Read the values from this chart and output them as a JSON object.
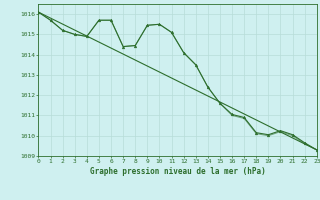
{
  "title": "Graphe pression niveau de la mer (hPa)",
  "bg_color": "#cff0f0",
  "grid_color": "#b8ddd8",
  "line_color": "#2d6e2d",
  "x_min": 0,
  "x_max": 23,
  "y_min": 1009,
  "y_max": 1016.5,
  "yticks": [
    1009,
    1010,
    1011,
    1012,
    1013,
    1014,
    1015,
    1016
  ],
  "series1_x": [
    0,
    1,
    2,
    3,
    4,
    5,
    6,
    7,
    8,
    9,
    10,
    11,
    12,
    13,
    14,
    15,
    16,
    17,
    18,
    19,
    20,
    21,
    22,
    23
  ],
  "series1_y": [
    1016.1,
    1015.7,
    1015.2,
    1015.0,
    1014.9,
    1015.7,
    1015.7,
    1014.4,
    1014.45,
    1015.45,
    1015.5,
    1015.1,
    1014.1,
    1013.5,
    1012.4,
    1011.6,
    1011.05,
    1010.9,
    1010.15,
    1010.05,
    1010.25,
    1010.05,
    1009.65,
    1009.3
  ],
  "series2_x": [
    0,
    1,
    2,
    3,
    4,
    5,
    6,
    7,
    8,
    9,
    10,
    11,
    12,
    13,
    14,
    15,
    16,
    17,
    18,
    19,
    20,
    21,
    22,
    23
  ],
  "series2_y": [
    1016.1,
    1015.7,
    1015.2,
    1015.0,
    1014.9,
    1015.7,
    1015.7,
    1014.4,
    1014.45,
    1015.45,
    1015.5,
    1015.1,
    1014.1,
    1013.5,
    1012.4,
    1011.6,
    1011.0,
    1010.85,
    1010.1,
    1010.0,
    1010.2,
    1010.0,
    1009.6,
    1009.3
  ],
  "trend_x": [
    0,
    23
  ],
  "trend_y": [
    1016.1,
    1009.3
  ]
}
